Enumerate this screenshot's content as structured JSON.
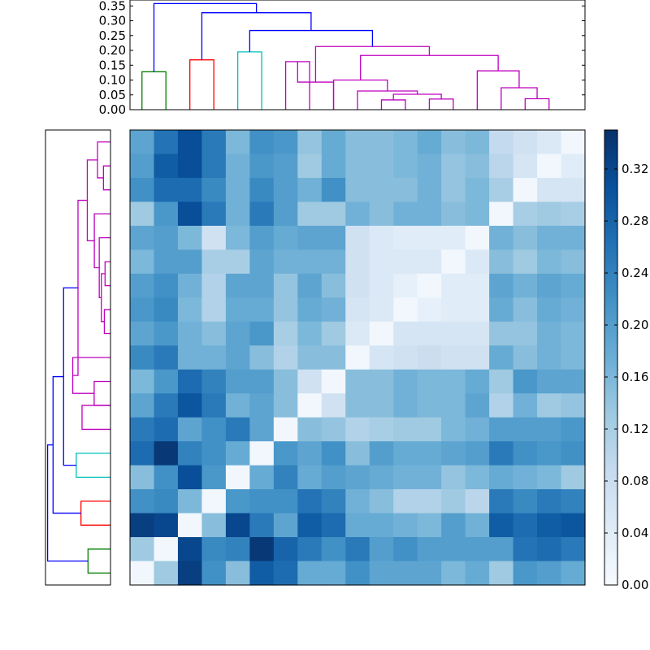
{
  "chart_data": [
    {
      "type": "dendrogram",
      "orientation": "top",
      "ylim": [
        0,
        0.37
      ],
      "yticks": [
        "0.00",
        "0.05",
        "0.10",
        "0.15",
        "0.20",
        "0.25",
        "0.30",
        "0.35"
      ],
      "leaf_count": 19,
      "colors": {
        "green": "#008000",
        "red": "#ff0000",
        "cyan": "#00bfbf",
        "magenta": "#bf00bf",
        "blue": "#0000ff"
      },
      "links": [
        {
          "a": 0.5,
          "b": 1.5,
          "h": 0.128,
          "color": "green"
        },
        {
          "a": 2.5,
          "b": 3.5,
          "h": 0.168,
          "color": "red"
        },
        {
          "a": 4.5,
          "b": 5.5,
          "h": 0.195,
          "color": "cyan"
        },
        {
          "a": 6.5,
          "b": 7.5,
          "h": 0.162,
          "color": "magenta"
        },
        {
          "a": 7.0,
          "b": 8.5,
          "h": 0.093,
          "color": "magenta"
        },
        {
          "a": 10.5,
          "b": 11.5,
          "h": 0.033,
          "color": "magenta"
        },
        {
          "a": 12.5,
          "b": 13.5,
          "h": 0.036,
          "color": "magenta"
        },
        {
          "a": 11.0,
          "b": 13.0,
          "h": 0.052,
          "color": "magenta"
        },
        {
          "a": 9.5,
          "b": 12.0,
          "h": 0.063,
          "color": "magenta"
        },
        {
          "a": 8.5,
          "b": 10.75,
          "h": 0.1,
          "color": "magenta"
        },
        {
          "a": 16.5,
          "b": 17.5,
          "h": 0.037,
          "color": "magenta"
        },
        {
          "a": 15.5,
          "b": 17.0,
          "h": 0.074,
          "color": "magenta"
        },
        {
          "a": 14.5,
          "b": 16.25,
          "h": 0.131,
          "color": "magenta"
        },
        {
          "a": 9.625,
          "b": 15.375,
          "h": 0.183,
          "color": "magenta"
        },
        {
          "a": 7.75,
          "b": 12.5,
          "h": 0.213,
          "color": "magenta"
        },
        {
          "a": 5.0,
          "b": 10.125,
          "h": 0.267,
          "color": "blue"
        },
        {
          "a": 3.0,
          "b": 7.5625,
          "h": 0.327,
          "color": "blue"
        },
        {
          "a": 1.0,
          "b": 5.28,
          "h": 0.358,
          "color": "blue"
        }
      ]
    },
    {
      "type": "dendrogram",
      "orientation": "left",
      "leaf_count": 19,
      "links": [
        {
          "a": 17.5,
          "b": 18.5,
          "h": 0.128,
          "color": "green"
        },
        {
          "a": 15.5,
          "b": 16.5,
          "h": 0.168,
          "color": "red"
        },
        {
          "a": 13.5,
          "b": 14.5,
          "h": 0.195,
          "color": "cyan"
        },
        {
          "a": 11.5,
          "b": 12.5,
          "h": 0.162,
          "color": "magenta"
        },
        {
          "a": 10.5,
          "b": 11.5,
          "h": 0.093,
          "color": "magenta"
        },
        {
          "a": 9.5,
          "b": 11.0,
          "h": 0.215,
          "color": "magenta"
        },
        {
          "a": 7.5,
          "b": 8.5,
          "h": 0.035,
          "color": "magenta"
        },
        {
          "a": 5.5,
          "b": 6.5,
          "h": 0.031,
          "color": "magenta"
        },
        {
          "a": 6.0,
          "b": 8.0,
          "h": 0.052,
          "color": "magenta"
        },
        {
          "a": 4.5,
          "b": 7.0,
          "h": 0.064,
          "color": "magenta"
        },
        {
          "a": 3.5,
          "b": 5.75,
          "h": 0.092,
          "color": "magenta"
        },
        {
          "a": 1.5,
          "b": 2.5,
          "h": 0.04,
          "color": "magenta"
        },
        {
          "a": 0.5,
          "b": 2.0,
          "h": 0.074,
          "color": "magenta"
        },
        {
          "a": 1.25,
          "b": 4.625,
          "h": 0.132,
          "color": "magenta"
        },
        {
          "a": 2.9375,
          "b": 10.25,
          "h": 0.185,
          "color": "magenta"
        },
        {
          "a": 6.59,
          "b": 14.0,
          "h": 0.267,
          "color": "blue"
        },
        {
          "a": 10.3,
          "b": 16.0,
          "h": 0.327,
          "color": "blue"
        },
        {
          "a": 13.15,
          "b": 18.0,
          "h": 0.358,
          "color": "blue"
        }
      ]
    },
    {
      "type": "heatmap",
      "rows": 19,
      "cols": 19,
      "vmin": 0.0,
      "vmax": 0.35,
      "matrix": [
        [
          0.19,
          0.26,
          0.31,
          0.25,
          0.16,
          0.22,
          0.21,
          0.14,
          0.18,
          0.15,
          0.15,
          0.16,
          0.18,
          0.15,
          0.16,
          0.09,
          0.07,
          0.05,
          0.01
        ],
        [
          0.2,
          0.29,
          0.31,
          0.25,
          0.17,
          0.21,
          0.2,
          0.13,
          0.18,
          0.15,
          0.15,
          0.16,
          0.17,
          0.14,
          0.15,
          0.1,
          0.06,
          0.01,
          0.04
        ],
        [
          0.22,
          0.27,
          0.27,
          0.23,
          0.17,
          0.23,
          0.2,
          0.17,
          0.22,
          0.15,
          0.15,
          0.15,
          0.17,
          0.14,
          0.16,
          0.12,
          0.01,
          0.06,
          0.06
        ],
        [
          0.13,
          0.21,
          0.31,
          0.25,
          0.17,
          0.25,
          0.2,
          0.13,
          0.13,
          0.17,
          0.15,
          0.17,
          0.17,
          0.15,
          0.16,
          0.01,
          0.12,
          0.13,
          0.12
        ],
        [
          0.19,
          0.2,
          0.16,
          0.07,
          0.16,
          0.2,
          0.18,
          0.19,
          0.19,
          0.07,
          0.05,
          0.04,
          0.04,
          0.04,
          0.01,
          0.17,
          0.15,
          0.17,
          0.17
        ],
        [
          0.16,
          0.2,
          0.2,
          0.12,
          0.12,
          0.19,
          0.17,
          0.17,
          0.17,
          0.07,
          0.05,
          0.05,
          0.05,
          0.01,
          0.05,
          0.15,
          0.13,
          0.16,
          0.15
        ],
        [
          0.2,
          0.22,
          0.17,
          0.11,
          0.19,
          0.19,
          0.14,
          0.19,
          0.15,
          0.07,
          0.05,
          0.03,
          0.01,
          0.04,
          0.04,
          0.19,
          0.17,
          0.19,
          0.18
        ],
        [
          0.21,
          0.23,
          0.16,
          0.11,
          0.18,
          0.18,
          0.14,
          0.18,
          0.17,
          0.06,
          0.05,
          0.01,
          0.03,
          0.04,
          0.04,
          0.18,
          0.15,
          0.18,
          0.17
        ],
        [
          0.19,
          0.21,
          0.17,
          0.15,
          0.19,
          0.21,
          0.12,
          0.16,
          0.13,
          0.05,
          0.01,
          0.06,
          0.06,
          0.06,
          0.06,
          0.14,
          0.14,
          0.17,
          0.16
        ],
        [
          0.23,
          0.25,
          0.17,
          0.17,
          0.19,
          0.15,
          0.11,
          0.15,
          0.15,
          0.01,
          0.06,
          0.07,
          0.08,
          0.07,
          0.07,
          0.18,
          0.15,
          0.17,
          0.16
        ],
        [
          0.16,
          0.21,
          0.27,
          0.24,
          0.2,
          0.2,
          0.15,
          0.07,
          0.01,
          0.15,
          0.15,
          0.17,
          0.16,
          0.16,
          0.18,
          0.13,
          0.21,
          0.19,
          0.19
        ],
        [
          0.19,
          0.25,
          0.3,
          0.25,
          0.17,
          0.19,
          0.15,
          0.01,
          0.07,
          0.15,
          0.15,
          0.17,
          0.16,
          0.16,
          0.19,
          0.11,
          0.17,
          0.13,
          0.14
        ],
        [
          0.25,
          0.27,
          0.19,
          0.22,
          0.25,
          0.19,
          0.01,
          0.15,
          0.14,
          0.11,
          0.12,
          0.13,
          0.13,
          0.16,
          0.17,
          0.2,
          0.2,
          0.2,
          0.21
        ],
        [
          0.27,
          0.34,
          0.24,
          0.22,
          0.18,
          0.01,
          0.21,
          0.19,
          0.22,
          0.15,
          0.2,
          0.18,
          0.18,
          0.19,
          0.2,
          0.25,
          0.22,
          0.21,
          0.22
        ],
        [
          0.15,
          0.22,
          0.31,
          0.21,
          0.01,
          0.18,
          0.24,
          0.18,
          0.2,
          0.19,
          0.18,
          0.17,
          0.17,
          0.14,
          0.16,
          0.18,
          0.17,
          0.16,
          0.13
        ],
        [
          0.22,
          0.23,
          0.16,
          0.01,
          0.21,
          0.22,
          0.22,
          0.26,
          0.24,
          0.17,
          0.15,
          0.11,
          0.11,
          0.13,
          0.1,
          0.25,
          0.23,
          0.25,
          0.24
        ],
        [
          0.33,
          0.32,
          0.01,
          0.15,
          0.32,
          0.25,
          0.19,
          0.29,
          0.27,
          0.18,
          0.18,
          0.17,
          0.16,
          0.2,
          0.17,
          0.29,
          0.27,
          0.29,
          0.3
        ],
        [
          0.13,
          0.01,
          0.32,
          0.23,
          0.24,
          0.34,
          0.28,
          0.25,
          0.22,
          0.25,
          0.2,
          0.22,
          0.2,
          0.2,
          0.2,
          0.2,
          0.26,
          0.27,
          0.25
        ],
        [
          0.01,
          0.13,
          0.33,
          0.22,
          0.15,
          0.29,
          0.27,
          0.18,
          0.18,
          0.22,
          0.19,
          0.19,
          0.19,
          0.16,
          0.18,
          0.13,
          0.21,
          0.2,
          0.18
        ]
      ]
    },
    {
      "type": "colorbar",
      "vmin": 0.0,
      "vmax": 0.35,
      "ticks": [
        "0.00",
        "0.04",
        "0.08",
        "0.12",
        "0.16",
        "0.20",
        "0.24",
        "0.28",
        "0.32"
      ]
    }
  ]
}
